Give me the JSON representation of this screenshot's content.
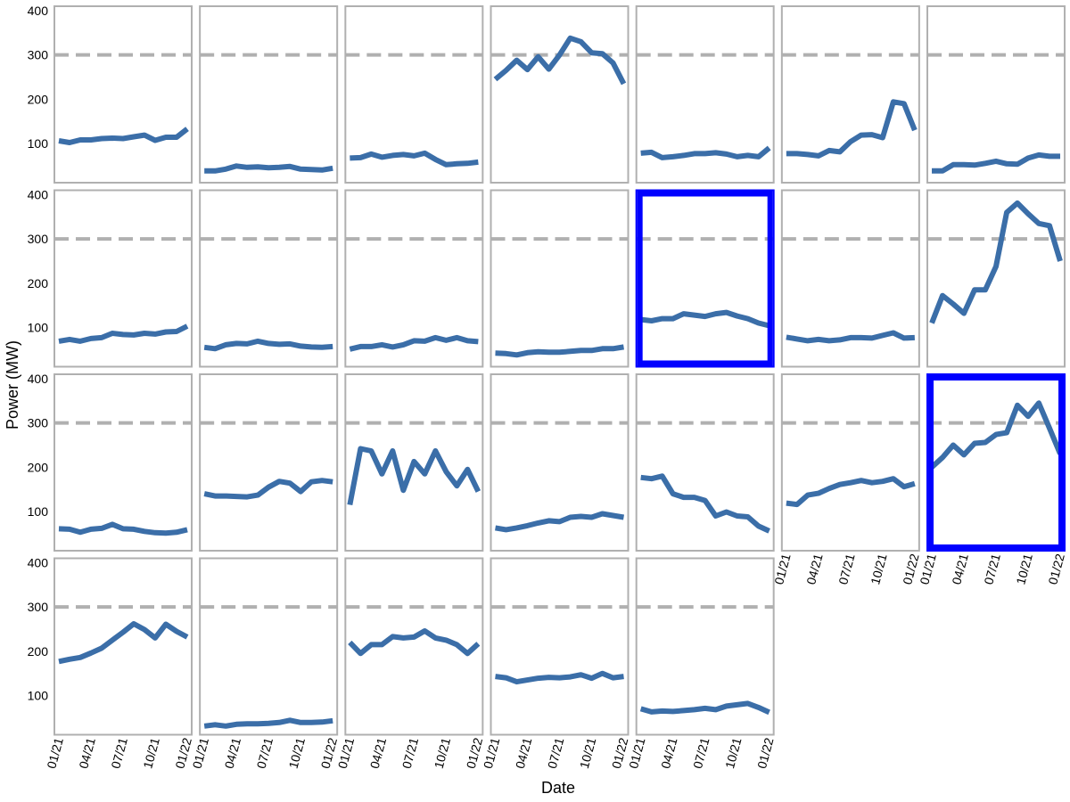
{
  "chart_data": {
    "type": "line",
    "subtype": "small-multiples",
    "xlabel": "Date",
    "ylabel": "Power (MW)",
    "y_ticks": [
      100,
      200,
      300,
      400
    ],
    "x_ticks": [
      "01/21",
      "04/21",
      "07/21",
      "10/21",
      "01/22"
    ],
    "reference_line": {
      "y": 300,
      "style": "dashed",
      "color": "#b0b0b0"
    },
    "grid": false,
    "line_color": "#3b6ea8",
    "frame_color": "#b0b0b0",
    "highlight_color": "#0000ff",
    "layout": {
      "columns": 7,
      "rows": 4
    },
    "series": [
      {
        "values": [
          106,
          102,
          108,
          108,
          111,
          112,
          111,
          115,
          119,
          107,
          114,
          114,
          133
        ]
      },
      {
        "values": [
          38,
          38,
          42,
          49,
          46,
          47,
          45,
          46,
          48,
          42,
          41,
          40,
          44
        ]
      },
      {
        "values": [
          67,
          68,
          76,
          69,
          73,
          75,
          72,
          78,
          64,
          52,
          54,
          55,
          58
        ]
      },
      {
        "values": [
          245,
          265,
          288,
          267,
          296,
          268,
          300,
          338,
          330,
          305,
          303,
          282,
          235
        ]
      },
      {
        "values": [
          78,
          80,
          68,
          70,
          73,
          77,
          77,
          79,
          76,
          70,
          73,
          70,
          90
        ]
      },
      {
        "values": [
          77,
          77,
          75,
          72,
          84,
          81,
          104,
          119,
          120,
          113,
          194,
          190,
          130
        ]
      },
      {
        "values": [
          38,
          38,
          52,
          52,
          51,
          55,
          60,
          54,
          53,
          67,
          74,
          71,
          71
        ]
      },
      {
        "values": [
          69,
          73,
          69,
          75,
          77,
          87,
          84,
          83,
          87,
          85,
          90,
          91,
          103
        ]
      },
      {
        "values": [
          55,
          52,
          61,
          64,
          63,
          69,
          64,
          62,
          63,
          58,
          56,
          55,
          57
        ]
      },
      {
        "values": [
          51,
          57,
          57,
          61,
          56,
          61,
          70,
          69,
          77,
          71,
          77,
          70,
          68
        ]
      },
      {
        "values": [
          42,
          41,
          38,
          43,
          45,
          44,
          44,
          46,
          48,
          48,
          52,
          52,
          56
        ]
      },
      {
        "values": [
          118,
          115,
          120,
          120,
          131,
          128,
          125,
          131,
          134,
          126,
          120,
          110,
          104
        ],
        "highlight": true
      },
      {
        "values": [
          78,
          74,
          70,
          73,
          70,
          72,
          77,
          77,
          76,
          82,
          88,
          76,
          77
        ]
      },
      {
        "values": [
          110,
          172,
          153,
          132,
          185,
          185,
          238,
          360,
          381,
          357,
          335,
          330,
          250
        ]
      },
      {
        "values": [
          61,
          60,
          53,
          60,
          62,
          71,
          61,
          60,
          55,
          52,
          51,
          53,
          59
        ]
      },
      {
        "values": [
          140,
          135,
          135,
          134,
          133,
          137,
          155,
          168,
          164,
          145,
          167,
          170,
          167
        ]
      },
      {
        "values": [
          115,
          242,
          237,
          185,
          237,
          148,
          213,
          185,
          237,
          190,
          158,
          195,
          145
        ]
      },
      {
        "values": [
          63,
          59,
          63,
          68,
          74,
          79,
          77,
          87,
          89,
          87,
          95,
          91,
          87
        ]
      },
      {
        "values": [
          177,
          174,
          180,
          140,
          132,
          132,
          125,
          90,
          99,
          90,
          88,
          67,
          56
        ]
      },
      {
        "values": [
          119,
          116,
          137,
          141,
          152,
          161,
          165,
          170,
          165,
          168,
          174,
          156,
          163
        ]
      },
      {
        "values": [
          200,
          222,
          250,
          228,
          254,
          256,
          274,
          278,
          340,
          315,
          345,
          288,
          230
        ],
        "highlight": true
      },
      {
        "values": [
          177,
          182,
          186,
          196,
          207,
          225,
          243,
          262,
          249,
          230,
          261,
          245,
          232
        ]
      },
      {
        "values": [
          31,
          34,
          31,
          35,
          36,
          36,
          37,
          39,
          44,
          39,
          39,
          40,
          43
        ]
      },
      {
        "values": [
          220,
          195,
          215,
          215,
          233,
          230,
          232,
          246,
          230,
          225,
          215,
          195,
          217
        ]
      },
      {
        "values": [
          143,
          140,
          131,
          135,
          139,
          141,
          140,
          142,
          147,
          139,
          150,
          140,
          143
        ]
      },
      {
        "values": [
          70,
          63,
          65,
          64,
          66,
          68,
          71,
          68,
          76,
          79,
          82,
          73,
          62
        ]
      }
    ]
  }
}
